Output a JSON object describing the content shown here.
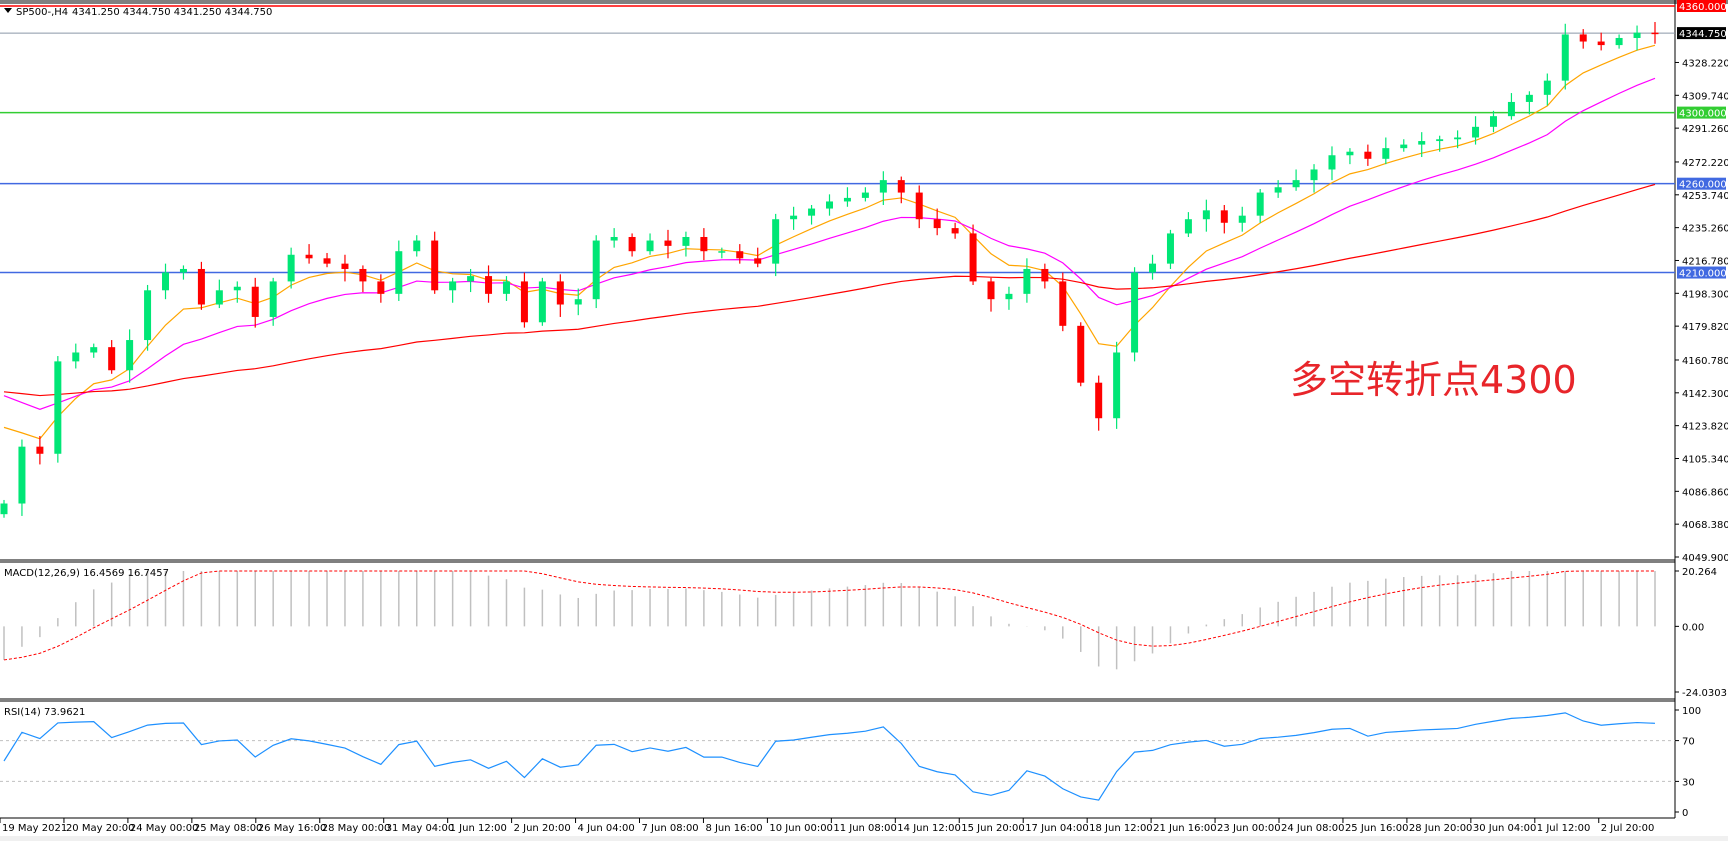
{
  "header": {
    "symbol": "SP500-,H4",
    "ohlc": "4341.250 4344.750 4341.250 4344.750"
  },
  "annotation": {
    "text": "多空转折点4300",
    "color": "#e8252a"
  },
  "price_axis": {
    "ticks": [
      "4328.220",
      "4309.740",
      "4291.260",
      "4272.220",
      "4253.740",
      "4235.260",
      "4216.780",
      "4198.300",
      "4179.820",
      "4160.780",
      "4142.300",
      "4123.820",
      "4105.340",
      "4086.860",
      "4068.380",
      "4049.900"
    ],
    "range": [
      4049.9,
      4360.0
    ]
  },
  "levels": [
    {
      "label": "4360.000",
      "value": 4360.0,
      "color": "#ff0000"
    },
    {
      "label": "4344.750",
      "value": 4344.75,
      "color": "#000000"
    },
    {
      "label": "4300.000",
      "value": 4300.0,
      "color": "#32cd32"
    },
    {
      "label": "4260.000",
      "value": 4260.0,
      "color": "#4169e1"
    },
    {
      "label": "4210.000",
      "value": 4210.0,
      "color": "#4169e1"
    }
  ],
  "time_axis": [
    "19 May 2021",
    "20 May 20:00",
    "24 May 00:00",
    "25 May 08:00",
    "26 May 16:00",
    "28 May 00:00",
    "31 May 04:00",
    "1 Jun 12:00",
    "2 Jun 20:00",
    "4 Jun 04:00",
    "7 Jun 08:00",
    "8 Jun 16:00",
    "10 Jun 00:00",
    "11 Jun 08:00",
    "14 Jun 12:00",
    "15 Jun 20:00",
    "17 Jun 04:00",
    "18 Jun 12:00",
    "21 Jun 16:00",
    "23 Jun 00:00",
    "24 Jun 08:00",
    "25 Jun 16:00",
    "28 Jun 20:00",
    "30 Jun 04:00",
    "1 Jul 12:00",
    "2 Jul 20:00"
  ],
  "macd": {
    "label": "MACD(12,26,9) 16.4569 16.7457",
    "ticks": [
      "20.264",
      "0.00",
      "-24.0303"
    ],
    "range": [
      -24.0303,
      20.264
    ]
  },
  "rsi": {
    "label": "RSI(14) 73.9621",
    "ticks": [
      "100",
      "70",
      "30",
      "0"
    ],
    "levels": [
      70,
      30
    ]
  },
  "colors": {
    "bull": "#00e676",
    "bear": "#ff0000",
    "ma_fast": "#ffa500",
    "ma_mid": "#ff00ff",
    "ma_slow": "#ff0000",
    "rsi": "#1e90ff",
    "macd_hist": "#c0c0c0",
    "macd_signal": "#ff0000"
  },
  "chart_data": {
    "type": "candlestick",
    "closes": [
      4080,
      4112,
      4108,
      4160,
      4165,
      4168,
      4155,
      4172,
      4200,
      4210,
      4212,
      4192,
      4200,
      4202,
      4185,
      4205,
      4220,
      4218,
      4215,
      4212,
      4205,
      4198,
      4222,
      4228,
      4200,
      4205,
      4208,
      4198,
      4205,
      4182,
      4205,
      4192,
      4195,
      4228,
      4230,
      4222,
      4228,
      4225,
      4230,
      4222,
      4222,
      4218,
      4215,
      4240,
      4242,
      4246,
      4250,
      4252,
      4255,
      4262,
      4255,
      4240,
      4235,
      4232,
      4205,
      4195,
      4198,
      4212,
      4205,
      4180,
      4148,
      4128,
      4165,
      4210,
      4215,
      4232,
      4240,
      4245,
      4238,
      4242,
      4255,
      4258,
      4262,
      4268,
      4276,
      4278,
      4274,
      4280,
      4282,
      4284,
      4285,
      4286,
      4292,
      4298,
      4306,
      4310,
      4318,
      4344,
      4340,
      4338,
      4342,
      4345,
      4344.75
    ]
  }
}
